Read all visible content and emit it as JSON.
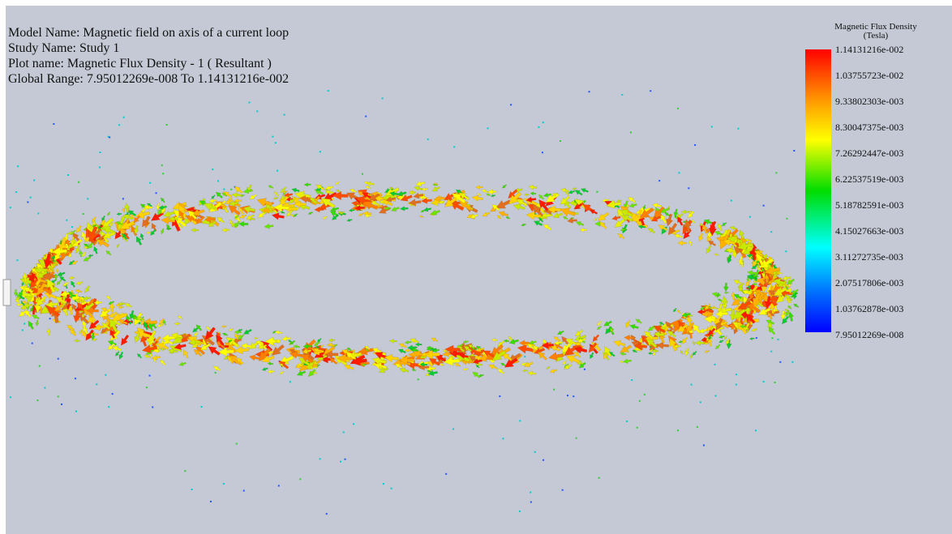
{
  "info": {
    "model_name": "Model Name: Magnetic field on axis of a current loop",
    "study_name": "Study Name: Study 1",
    "plot_name": "Plot name: Magnetic Flux Density - 1 ( Resultant )",
    "global_range": "Global Range: 7.95012269e-008 To 1.14131216e-002"
  },
  "legend": {
    "title": "Magnetic Flux Density",
    "unit": "(Tesla)",
    "labels": [
      "1.14131216e-002",
      "1.03755723e-002",
      "9.33802303e-003",
      "8.30047375e-003",
      "7.26292447e-003",
      "6.22537519e-003",
      "5.18782591e-003",
      "4.15027663e-003",
      "3.11272735e-003",
      "2.07517806e-003",
      "1.03762878e-003",
      "7.95012269e-008"
    ]
  }
}
